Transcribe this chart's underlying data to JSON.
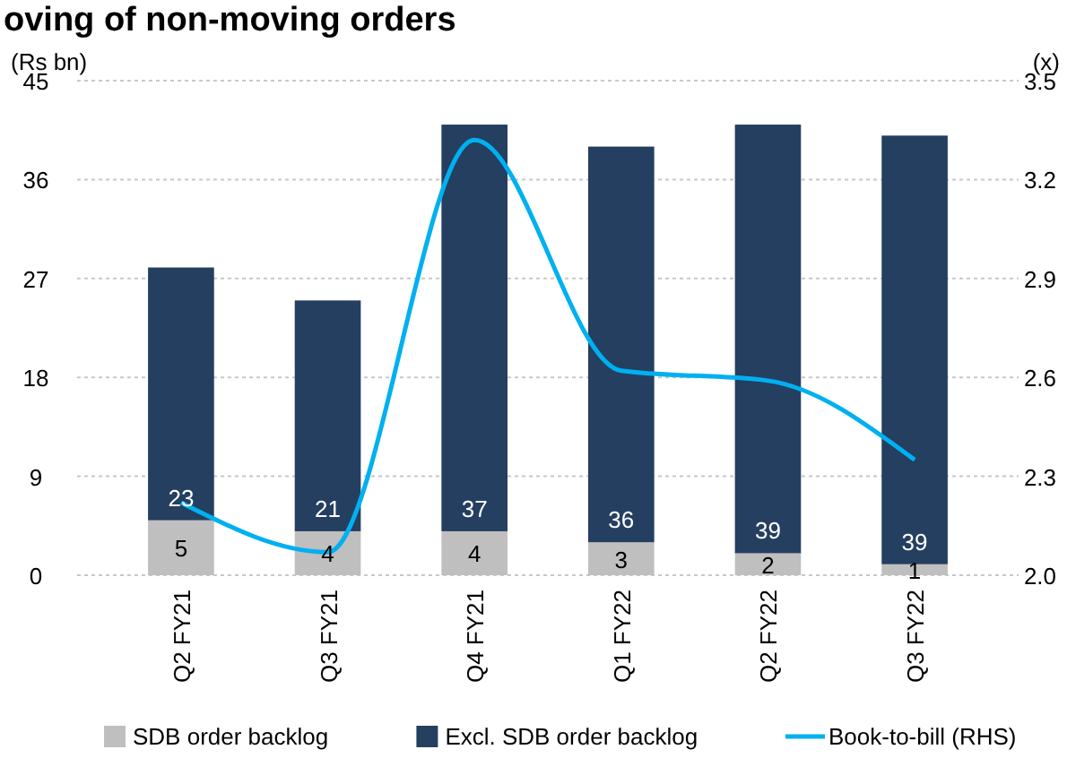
{
  "chart_data": {
    "type": "bar",
    "title": "oving of non-moving orders",
    "ylabel": "(Rs bn)",
    "y2label": "(x)",
    "categories": [
      "Q2 FY21",
      "Q3 FY21",
      "Q4 FY21",
      "Q1 FY22",
      "Q2 FY22",
      "Q3 FY22"
    ],
    "stacked": true,
    "grid": "y",
    "legend": "bottom",
    "ylim": [
      0,
      45
    ],
    "yticks": [
      0,
      9,
      18,
      27,
      36,
      45
    ],
    "y2lim": [
      2.0,
      3.5
    ],
    "y2ticks": [
      {
        "value": 2.0,
        "label": "2.0"
      },
      {
        "value": 2.3,
        "label": "2.3"
      },
      {
        "value": 2.6,
        "label": "2.6"
      },
      {
        "value": 2.9,
        "label": "2.9"
      },
      {
        "value": 3.2,
        "label": "3.2"
      },
      {
        "value": 3.5,
        "label": "3.5"
      }
    ],
    "series": [
      {
        "name": "SDB order backlog",
        "color": "#bfbfbf",
        "values": [
          5,
          4,
          4,
          3,
          2,
          1
        ],
        "value_labels": [
          "5",
          "4",
          "4",
          "3",
          "2",
          "1"
        ]
      },
      {
        "name": "Excl. SDB order backlog",
        "color": "#243f60",
        "values": [
          23,
          21,
          37,
          36,
          39,
          39
        ],
        "value_labels": [
          "23",
          "21",
          "37",
          "36",
          "39",
          "39"
        ]
      },
      {
        "name": "Book-to-bill (RHS)",
        "type": "line",
        "axis": "y2",
        "color": "#00b0f0",
        "values": [
          2.22,
          2.07,
          3.32,
          2.62,
          2.59,
          2.35
        ]
      }
    ]
  }
}
